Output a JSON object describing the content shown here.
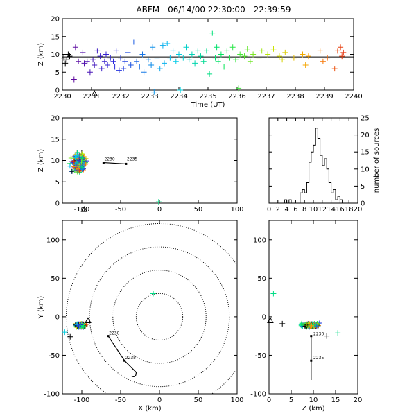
{
  "chart_data": {
    "title": "ABFM - 06/14/00 22:30:00 - 22:39:59",
    "panels": [
      {
        "id": "time-height",
        "type": "scatter",
        "xlabel": "Time (UT)",
        "ylabel": "Z (km)",
        "xlim": [
          2230,
          2240
        ],
        "ylim": [
          0,
          20
        ],
        "xticks": [
          "2230",
          "2231",
          "2232",
          "2233",
          "2234",
          "2235",
          "2236",
          "2237",
          "2238",
          "2239",
          "2240"
        ],
        "yticks": [
          "0",
          "5",
          "10",
          "15",
          "20"
        ],
        "reference_line_z": 9.3,
        "station_marker": {
          "x": 2231.1,
          "y": -1.0,
          "label": "triangle"
        },
        "points": [
          [
            2230.05,
            9
          ],
          [
            2230.1,
            7.5
          ],
          [
            2230.15,
            8.5
          ],
          [
            2230.2,
            10
          ],
          [
            2230.25,
            9.5
          ],
          [
            2230.4,
            3
          ],
          [
            2230.45,
            12
          ],
          [
            2230.55,
            8
          ],
          [
            2230.7,
            10.5
          ],
          [
            2230.75,
            7.5
          ],
          [
            2230.85,
            8
          ],
          [
            2230.95,
            5
          ],
          [
            2231.05,
            8.5
          ],
          [
            2231.1,
            7
          ],
          [
            2231.2,
            11
          ],
          [
            2231.3,
            9.5
          ],
          [
            2231.35,
            6
          ],
          [
            2231.45,
            8
          ],
          [
            2231.5,
            10
          ],
          [
            2231.55,
            7
          ],
          [
            2231.65,
            9
          ],
          [
            2231.75,
            8
          ],
          [
            2231.8,
            6.5
          ],
          [
            2231.85,
            11
          ],
          [
            2231.95,
            5.5
          ],
          [
            2232,
            9
          ],
          [
            2232.1,
            6
          ],
          [
            2232.15,
            8
          ],
          [
            2232.25,
            10.5
          ],
          [
            2232.35,
            7
          ],
          [
            2232.45,
            13.5
          ],
          [
            2232.55,
            8
          ],
          [
            2232.65,
            6.5
          ],
          [
            2232.75,
            10
          ],
          [
            2232.8,
            5
          ],
          [
            2232.95,
            8.5
          ],
          [
            2233.05,
            7
          ],
          [
            2233.1,
            12
          ],
          [
            2233.15,
            -0.5
          ],
          [
            2233.25,
            9
          ],
          [
            2233.35,
            6
          ],
          [
            2233.45,
            12.5
          ],
          [
            2233.5,
            7.5
          ],
          [
            2233.6,
            13
          ],
          [
            2233.7,
            9
          ],
          [
            2233.8,
            11
          ],
          [
            2233.9,
            8
          ],
          [
            2234,
            10
          ],
          [
            2234.05,
            0
          ],
          [
            2234.15,
            9
          ],
          [
            2234.25,
            12
          ],
          [
            2234.35,
            8.5
          ],
          [
            2234.45,
            10
          ],
          [
            2234.55,
            7.5
          ],
          [
            2234.65,
            11
          ],
          [
            2234.75,
            9.5
          ],
          [
            2234.85,
            8
          ],
          [
            2234.95,
            11
          ],
          [
            2235.05,
            4.5
          ],
          [
            2235.15,
            16
          ],
          [
            2235.25,
            9
          ],
          [
            2235.3,
            12
          ],
          [
            2235.35,
            8
          ],
          [
            2235.45,
            10
          ],
          [
            2235.55,
            6.5
          ],
          [
            2235.65,
            11
          ],
          [
            2235.75,
            9
          ],
          [
            2235.85,
            12
          ],
          [
            2235.95,
            8.5
          ],
          [
            2236.05,
            0.5
          ],
          [
            2236.1,
            10
          ],
          [
            2236.25,
            9.5
          ],
          [
            2236.35,
            11.5
          ],
          [
            2236.45,
            8
          ],
          [
            2236.55,
            10
          ],
          [
            2236.75,
            9
          ],
          [
            2236.85,
            11
          ],
          [
            2237.05,
            10
          ],
          [
            2237.25,
            11.5
          ],
          [
            2237.45,
            9.5
          ],
          [
            2237.55,
            8.5
          ],
          [
            2237.65,
            10.5
          ],
          [
            2237.95,
            9
          ],
          [
            2238.25,
            10
          ],
          [
            2238.35,
            7
          ],
          [
            2238.45,
            9.5
          ],
          [
            2238.85,
            11
          ],
          [
            2238.95,
            8
          ],
          [
            2239.1,
            9
          ],
          [
            2239.35,
            6
          ],
          [
            2239.45,
            11
          ],
          [
            2239.55,
            12
          ],
          [
            2239.6,
            9.5
          ],
          [
            2239.65,
            10.5
          ]
        ]
      },
      {
        "id": "x-height",
        "type": "scatter",
        "xlabel": "",
        "ylabel": "Z (km)",
        "xlim": [
          -125,
          100
        ],
        "ylim": [
          0,
          20
        ],
        "xticks": [
          "-100",
          "-50",
          "0",
          "50",
          "100"
        ],
        "yticks": [
          "0",
          "5",
          "10",
          "15",
          "20"
        ],
        "track_labels": [
          "2230",
          "2235"
        ],
        "station_marker": {
          "x": -97,
          "y": -1.0,
          "label": "triangle"
        }
      },
      {
        "id": "histogram",
        "type": "bar",
        "xlabel": "",
        "ylabel": "number of sources",
        "xlim": [
          0,
          20
        ],
        "ylim": [
          0,
          25
        ],
        "xticks": [
          "0",
          "2",
          "4",
          "6",
          "8",
          "10",
          "12",
          "14",
          "16",
          "18",
          "20"
        ],
        "yticks": [
          "0",
          "5",
          "10",
          "15",
          "20",
          "25"
        ],
        "bin_width": 0.5,
        "bin_start": 0,
        "counts": [
          0,
          0,
          0,
          0,
          0,
          0,
          0,
          1,
          0,
          1,
          0,
          0,
          0,
          0,
          3,
          4,
          3,
          6,
          12,
          15,
          17,
          22,
          19,
          14,
          11,
          13,
          10,
          6,
          3,
          4,
          1,
          2,
          1,
          0,
          0,
          0,
          0,
          0,
          0,
          0
        ]
      },
      {
        "id": "plan-view",
        "type": "scatter",
        "xlabel": "X (km)",
        "ylabel": "Y (km)",
        "xlim": [
          -125,
          100
        ],
        "ylim": [
          -100,
          125
        ],
        "xticks": [
          "-100",
          "-50",
          "0",
          "50",
          "100"
        ],
        "yticks": [
          "-100",
          "-50",
          "0",
          "50",
          "100"
        ],
        "range_rings_km": [
          30,
          60,
          90,
          120
        ],
        "track_labels": [
          "2230",
          "2235"
        ],
        "station_marker": {
          "x": -92,
          "y": -5,
          "label": "triangle"
        }
      },
      {
        "id": "z-y",
        "type": "scatter",
        "xlabel": "Z (km)",
        "ylabel": "",
        "xlim": [
          0,
          20
        ],
        "ylim": [
          -100,
          125
        ],
        "xticks": [
          "0",
          "5",
          "10",
          "15",
          "20"
        ],
        "yticks": [
          "-100",
          "-50",
          "0",
          "50",
          "100"
        ],
        "track_labels": [
          "2230",
          "2235"
        ],
        "station_marker": {
          "x": 0.3,
          "y": -5,
          "label": "triangle"
        }
      }
    ]
  }
}
